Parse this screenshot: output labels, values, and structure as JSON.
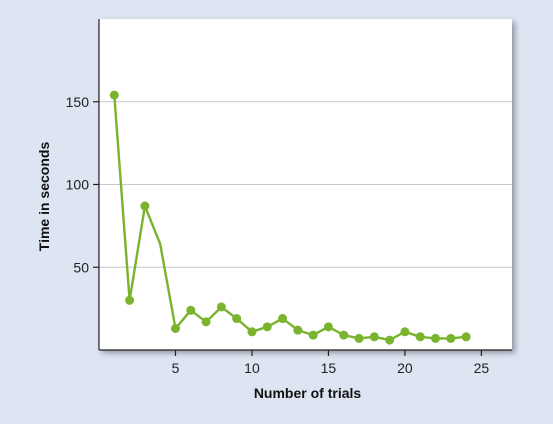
{
  "chart_data": {
    "type": "line",
    "xlabel": "Number of trials",
    "ylabel": "Time in seconds",
    "xlim": [
      0,
      27
    ],
    "ylim": [
      0,
      200
    ],
    "xticks": [
      5,
      10,
      15,
      20,
      25
    ],
    "yticks": [
      50,
      100,
      150
    ],
    "grid": true,
    "colors": {
      "line": "#7ab32e",
      "marker": "#7ab32e",
      "grid": "#c8c8c8",
      "axis": "#222222",
      "plot_bg": "#ffffff",
      "page_bg": "#dde4f2"
    },
    "series": [
      {
        "x": [
          1,
          2,
          3,
          4,
          5,
          6,
          7,
          8,
          9,
          10,
          11,
          12,
          13,
          14,
          15,
          16,
          17,
          18,
          19,
          20,
          21,
          22,
          23,
          24
        ],
        "y": [
          154,
          30,
          87,
          64,
          13,
          24,
          17,
          26,
          19,
          11,
          14,
          19,
          12,
          9,
          14,
          9,
          7,
          8,
          6,
          11,
          8,
          7,
          7,
          8
        ],
        "markers": [
          true,
          true,
          true,
          false,
          true,
          true,
          true,
          true,
          true,
          true,
          true,
          true,
          true,
          true,
          true,
          true,
          true,
          true,
          true,
          true,
          true,
          true,
          true,
          true
        ]
      }
    ]
  }
}
